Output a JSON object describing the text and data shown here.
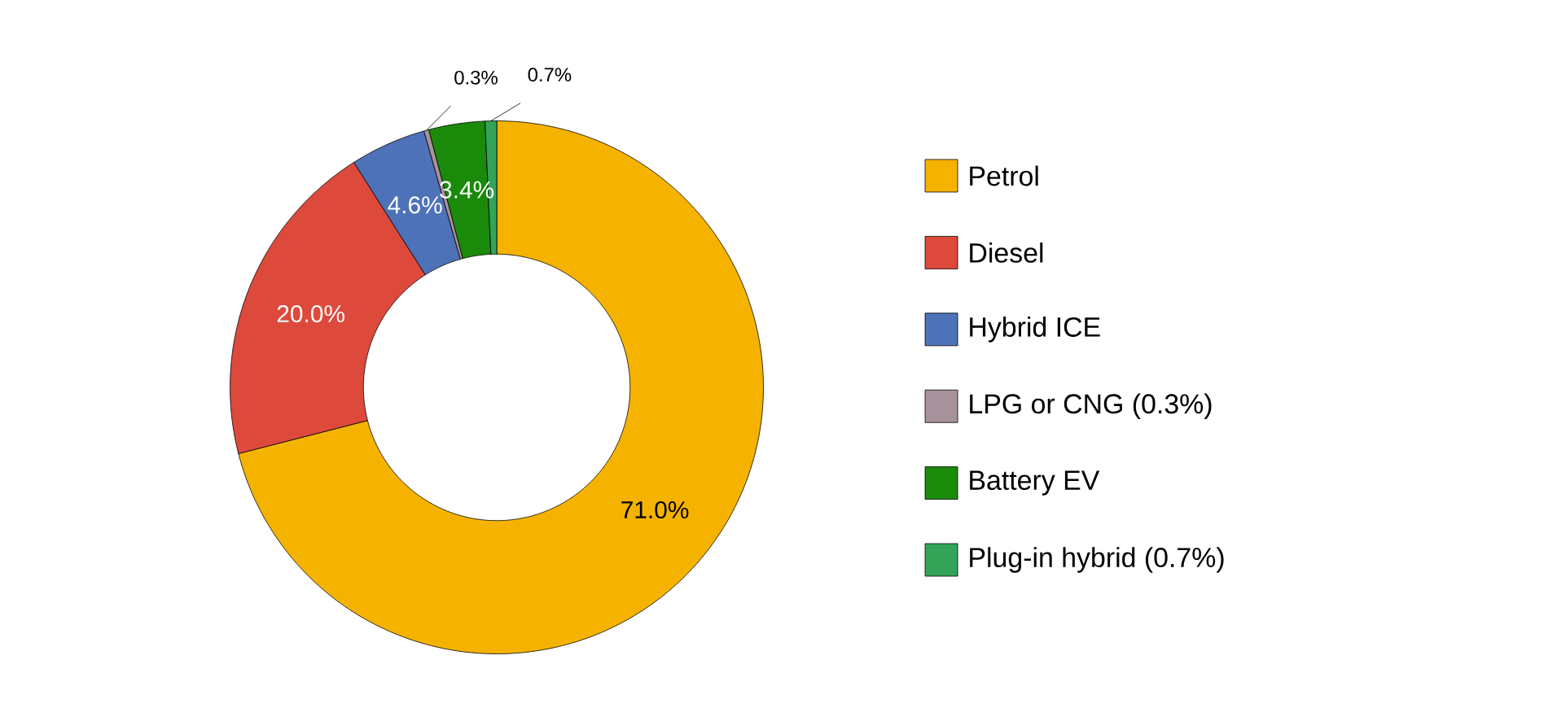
{
  "chart_data": {
    "type": "donut",
    "categories": [
      "Petrol",
      "Diesel",
      "Hybrid ICE",
      "LPG or CNG (0.3%)",
      "Battery EV",
      "Plug-in hybrid (0.7%)"
    ],
    "values": [
      71.0,
      20.0,
      4.6,
      0.3,
      3.4,
      0.7
    ],
    "colors": [
      "#f5b300",
      "#dd4a3c",
      "#4d72b8",
      "#a8929b",
      "#1a8a0a",
      "#33a457"
    ],
    "value_labels": [
      "71.0%",
      "20.0%",
      "4.6%",
      "0.3%",
      "3.4%",
      "0.7%"
    ],
    "legend": "right"
  }
}
